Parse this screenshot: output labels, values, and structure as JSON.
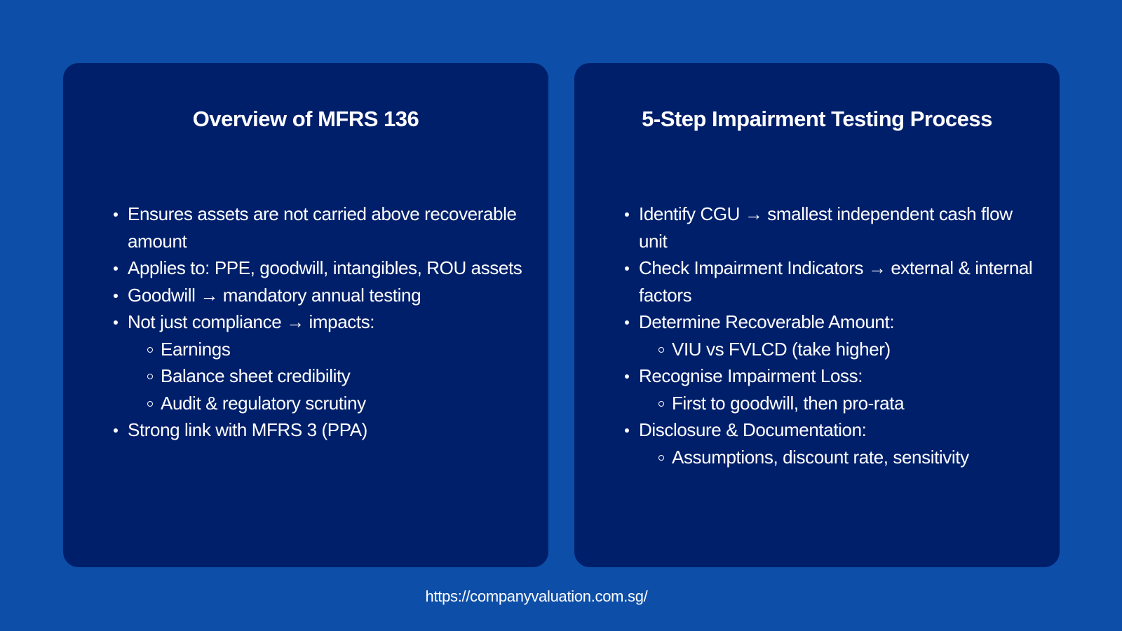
{
  "colors": {
    "background": "#0d4ea8",
    "card": "#001f6b",
    "text": "#ffffff"
  },
  "left_card": {
    "title": "Overview of MFRS 136",
    "items": [
      {
        "level": 1,
        "text": "Ensures assets are not carried above recoverable amount"
      },
      {
        "level": 1,
        "text": "Applies to: PPE, goodwill, intangibles, ROU assets"
      },
      {
        "level": 1,
        "text": "Goodwill → mandatory annual testing"
      },
      {
        "level": 1,
        "text": "Not just compliance → impacts:"
      },
      {
        "level": 2,
        "text": "Earnings"
      },
      {
        "level": 2,
        "text": "Balance sheet credibility"
      },
      {
        "level": 2,
        "text": "Audit & regulatory scrutiny"
      },
      {
        "level": 1,
        "text": "Strong link with MFRS 3 (PPA)"
      }
    ]
  },
  "right_card": {
    "title": "5-Step Impairment Testing Process",
    "items": [
      {
        "level": 1,
        "text": "Identify CGU → smallest independent cash flow unit"
      },
      {
        "level": 1,
        "text": "Check Impairment Indicators → external & internal factors"
      },
      {
        "level": 1,
        "text": "Determine Recoverable Amount:"
      },
      {
        "level": 2,
        "text": "VIU vs FVLCD (take higher)"
      },
      {
        "level": 1,
        "text": "Recognise Impairment Loss:"
      },
      {
        "level": 2,
        "text": "First to goodwill, then pro-rata"
      },
      {
        "level": 1,
        "text": "Disclosure & Documentation:"
      },
      {
        "level": 2,
        "text": "Assumptions, discount rate, sensitivity"
      }
    ]
  },
  "footer": {
    "url": "https://companyvaluation.com.sg/"
  }
}
